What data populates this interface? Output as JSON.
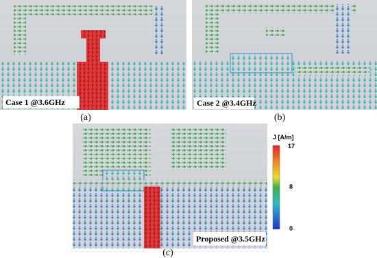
{
  "panels": [
    {
      "caption": "Case 1 @3.6GHz",
      "label": "(a)"
    },
    {
      "caption": "Case 2 @3.4GHz",
      "label": "(b)"
    },
    {
      "caption": "Proposed @3.5GHz",
      "label": "(c)"
    }
  ],
  "colorbar": {
    "title": "J [A/m]",
    "ticks": [
      17,
      8,
      0
    ]
  }
}
